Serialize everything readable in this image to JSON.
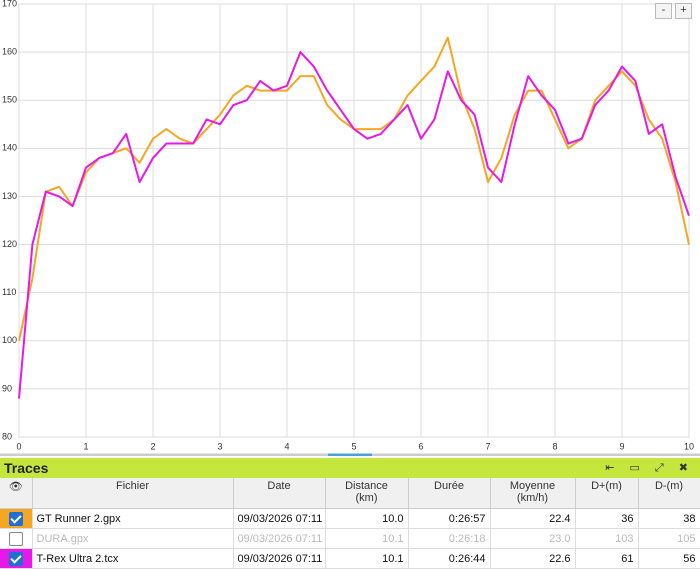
{
  "chart_data": {
    "type": "line",
    "x": [
      0,
      0.2,
      0.4,
      0.6,
      0.8,
      1,
      1.2,
      1.4,
      1.6,
      1.8,
      2,
      2.2,
      2.4,
      2.6,
      2.8,
      3,
      3.2,
      3.4,
      3.6,
      3.8,
      4,
      4.2,
      4.4,
      4.6,
      4.8,
      5,
      5.2,
      5.4,
      5.6,
      5.8,
      6,
      6.2,
      6.4,
      6.6,
      6.8,
      7,
      7.2,
      7.4,
      7.6,
      7.8,
      8,
      8.2,
      8.4,
      8.6,
      8.8,
      9,
      9.2,
      9.4,
      9.6,
      9.8,
      10
    ],
    "series": [
      {
        "color": "#f5a623",
        "values": [
          100,
          113,
          131,
          132,
          128,
          135,
          138,
          139,
          140,
          137,
          142,
          144,
          142,
          141,
          144,
          147,
          151,
          153,
          152,
          152,
          152,
          155,
          155,
          149,
          146,
          144,
          144,
          144,
          146,
          151,
          154,
          157,
          163,
          151,
          144,
          133,
          138,
          147,
          152,
          152,
          146,
          140,
          142,
          150,
          153,
          156,
          153,
          146,
          142,
          133,
          120
        ]
      },
      {
        "color": "#e619e6",
        "values": [
          88,
          120,
          131,
          130,
          128,
          136,
          138,
          139,
          143,
          133,
          138,
          141,
          141,
          141,
          146,
          145,
          149,
          150,
          154,
          152,
          153,
          160,
          157,
          152,
          148,
          144,
          142,
          143,
          146,
          149,
          142,
          146,
          156,
          150,
          147,
          136,
          133,
          145,
          155,
          151,
          148,
          141,
          142,
          149,
          152,
          157,
          154,
          143,
          145,
          134,
          126
        ]
      }
    ],
    "xlim": [
      0,
      10
    ],
    "xticks": [
      0,
      1,
      2,
      3,
      4,
      5,
      6,
      7,
      8,
      9,
      10
    ],
    "ylim": [
      80,
      170
    ],
    "yticks": [
      80,
      90,
      100,
      110,
      120,
      130,
      140,
      150,
      160,
      170
    ],
    "grid": true
  },
  "zoom": {
    "minus": "-",
    "plus": "+"
  },
  "panel": {
    "title": "Traces",
    "columns": [
      "Fichier",
      "Date",
      "Distance (km)",
      "Durée",
      "Moyenne (km/h)",
      "D+(m)",
      "D-(m)"
    ],
    "rows": [
      {
        "checked": true,
        "color": "#f5a623",
        "dim": false,
        "cells": [
          "GT Runner 2.gpx",
          "09/03/2026 07:11",
          "10.0",
          "0:26:57",
          "22.4",
          "36",
          "38"
        ]
      },
      {
        "checked": false,
        "color": "#ffffff",
        "dim": true,
        "cells": [
          "DURA.gpx",
          "09/03/2026 07:11",
          "10.1",
          "0:26:18",
          "23.0",
          "103",
          "105"
        ]
      },
      {
        "checked": true,
        "color": "#e619e6",
        "dim": false,
        "cells": [
          "T-Rex Ultra 2.tcx",
          "09/03/2026 07:11",
          "10.1",
          "0:26:44",
          "22.6",
          "61",
          "56"
        ]
      }
    ]
  }
}
